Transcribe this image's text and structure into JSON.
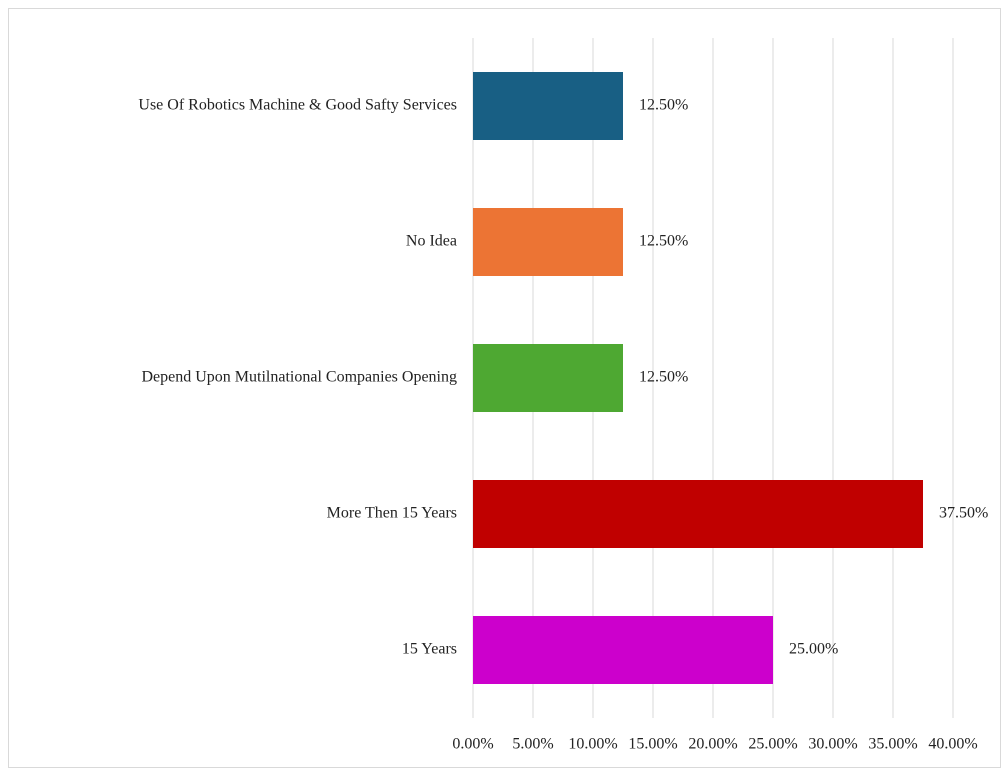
{
  "chart_data": {
    "type": "barh",
    "categories": [
      "Use Of Robotics Machine & Good Safty Services",
      "No Idea",
      "Depend Upon Mutilnational Companies Opening",
      "More Then 15 Years",
      "15 Years"
    ],
    "values": [
      12.5,
      12.5,
      12.5,
      37.5,
      25
    ],
    "value_labels": [
      "12.50%",
      "12.50%",
      "12.50%",
      "37.50%",
      "25.00%"
    ],
    "colors": [
      "#185f84",
      "#ec7434",
      "#4ea832",
      "#c00000",
      "#cc00cc"
    ],
    "xlim": [
      0,
      40
    ],
    "xticks": [
      {
        "value": 0,
        "label": "0.00%"
      },
      {
        "value": 5,
        "label": "5.00%"
      },
      {
        "value": 10,
        "label": "10.00%"
      },
      {
        "value": 15,
        "label": "15.00%"
      },
      {
        "value": 20,
        "label": "20.00%"
      },
      {
        "value": 25,
        "label": "25.00%"
      },
      {
        "value": 30,
        "label": "30.00%"
      },
      {
        "value": 35,
        "label": "35.00%"
      },
      {
        "value": 40,
        "label": "40.00%"
      }
    ],
    "grid": true
  }
}
